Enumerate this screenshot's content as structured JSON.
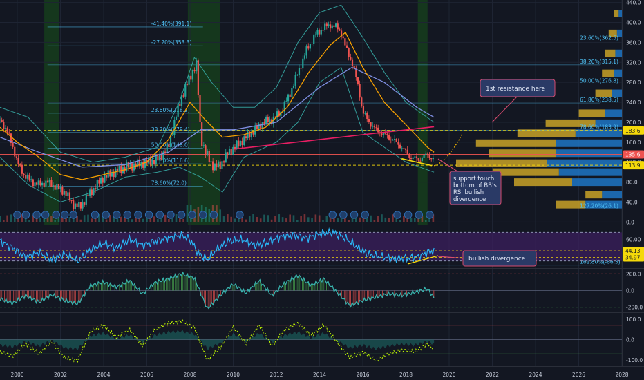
{
  "chart_data": {
    "type": "line",
    "instrument_panel": "price",
    "x_ticks": [
      "2000",
      "2002",
      "2004",
      "2006",
      "2008",
      "2010",
      "2012",
      "2014",
      "2016",
      "2018",
      "2020",
      "2022",
      "2024",
      "2026",
      "2028"
    ],
    "x_domain": [
      1999.2,
      2028.0
    ],
    "price_axis": {
      "ylim": [
        -5,
        445
      ],
      "ticks": [
        "0.0",
        "40.0",
        "80.0",
        "120.0",
        "160.0",
        "200.0",
        "240.0",
        "280.0",
        "320.0",
        "360.0",
        "400.0",
        "440.0"
      ],
      "tick_values": [
        0,
        40,
        80,
        120,
        160,
        200,
        240,
        280,
        320,
        360,
        400,
        440
      ],
      "badges": [
        {
          "label": "183.6",
          "value": 183.6,
          "color": "#f5d90a",
          "text_color": "#131722"
        },
        {
          "label": "135.6",
          "value": 135.6,
          "color": "#ef5350",
          "text_color": "#ffffff"
        },
        {
          "label": "113.9",
          "value": 113.9,
          "color": "#f5d90a",
          "text_color": "#131722"
        }
      ]
    },
    "price_series": {
      "name": "",
      "x": [
        1999.2,
        1999.5,
        1999.8,
        2000.0,
        2000.3,
        2000.7,
        2001.0,
        2001.4,
        2001.8,
        2002.2,
        2002.6,
        2002.9,
        2003.3,
        2003.7,
        2004.0,
        2004.5,
        2005.0,
        2005.5,
        2006.0,
        2006.5,
        2007.0,
        2007.3,
        2007.6,
        2007.9,
        2008.1,
        2008.3,
        2008.5,
        2008.7,
        2008.9,
        2009.1,
        2009.4,
        2009.8,
        2010.2,
        2010.6,
        2011.0,
        2011.4,
        2011.8,
        2012.2,
        2012.6,
        2013.0,
        2013.4,
        2013.8,
        2014.2,
        2014.5,
        2014.8,
        2015.0,
        2015.2,
        2015.5,
        2015.8,
        2016.0,
        2016.3,
        2016.6,
        2017.0,
        2017.4,
        2017.8,
        2018.2,
        2018.6,
        2019.0,
        2019.3
      ],
      "y": [
        205,
        185,
        150,
        120,
        95,
        80,
        75,
        80,
        70,
        60,
        35,
        30,
        55,
        75,
        90,
        100,
        110,
        115,
        120,
        125,
        150,
        205,
        250,
        280,
        300,
        315,
        170,
        140,
        125,
        110,
        115,
        140,
        155,
        170,
        185,
        200,
        205,
        220,
        255,
        300,
        345,
        375,
        390,
        395,
        390,
        380,
        350,
        320,
        270,
        220,
        200,
        185,
        175,
        165,
        150,
        130,
        125,
        135,
        125
      ]
    },
    "ma_orange": {
      "x": [
        1999.2,
        2000.0,
        2001.0,
        2002.0,
        2003.0,
        2004.0,
        2005.0,
        2006.0,
        2007.0,
        2008.0,
        2008.7,
        2009.5,
        2010.5,
        2011.5,
        2012.5,
        2013.5,
        2014.5,
        2015.2,
        2016.0,
        2017.0,
        2018.0,
        2019.0,
        2019.3
      ],
      "y": [
        190,
        160,
        130,
        95,
        85,
        95,
        105,
        120,
        165,
        240,
        205,
        170,
        175,
        190,
        230,
        300,
        355,
        380,
        310,
        240,
        195,
        150,
        140
      ]
    },
    "ma_blue": {
      "x": [
        1999.2,
        2001.0,
        2003.0,
        2005.0,
        2007.0,
        2008.5,
        2010.0,
        2012.0,
        2014.0,
        2015.5,
        2017.0,
        2018.5,
        2019.3
      ],
      "y": [
        170,
        140,
        110,
        115,
        140,
        185,
        185,
        200,
        270,
        310,
        280,
        230,
        210
      ]
    },
    "bb_upper": {
      "x": [
        1999.2,
        2000.5,
        2002.0,
        2003.5,
        2005.0,
        2006.5,
        2007.5,
        2008.2,
        2009.0,
        2010.0,
        2011.0,
        2012.0,
        2013.0,
        2014.0,
        2015.0,
        2016.0,
        2017.0,
        2018.0,
        2019.3
      ],
      "y": [
        230,
        210,
        140,
        120,
        130,
        150,
        240,
        330,
        280,
        230,
        230,
        270,
        360,
        420,
        435,
        370,
        300,
        240,
        200
      ]
    },
    "bb_lower": {
      "x": [
        1999.2,
        2000.5,
        2002.0,
        2003.5,
        2005.0,
        2006.5,
        2007.5,
        2008.5,
        2009.5,
        2010.5,
        2012.0,
        2013.0,
        2014.0,
        2015.0,
        2016.0,
        2017.0,
        2018.0,
        2019.3
      ],
      "y": [
        130,
        75,
        40,
        60,
        90,
        100,
        110,
        90,
        60,
        130,
        160,
        200,
        280,
        310,
        180,
        150,
        120,
        100
      ]
    },
    "fib_left": [
      {
        "label": "-41.40%(391.1)",
        "value": 391.1
      },
      {
        "label": "-27.20%(353.3)",
        "value": 353.3
      },
      {
        "label": "23.60%(218.2)",
        "value": 218.2
      },
      {
        "label": "38.20%(179.4)",
        "value": 179.4
      },
      {
        "label": "50.00%(148.0)",
        "value": 148.0
      },
      {
        "label": "61.80%(116.6)",
        "value": 116.6
      },
      {
        "label": "78.60%(72.0)",
        "value": 72.0
      }
    ],
    "fib_right": [
      {
        "label": "23.60%(362.5)",
        "value": 362.5
      },
      {
        "label": "38.20%(315.1)",
        "value": 315.1
      },
      {
        "label": "50.00%(276.8)",
        "value": 276.8
      },
      {
        "label": "61.80%(238.5)",
        "value": 238.5
      },
      {
        "label": "78.60%(183.9)",
        "value": 183.9
      },
      {
        "label": "127.20%(26.1)",
        "value": 26.1
      },
      {
        "label": "161.80%(-86.3)",
        "value": -86.3
      }
    ],
    "horizontal_levels": [
      {
        "value": 183.6,
        "color": "#f5d90a",
        "style": "dashed"
      },
      {
        "value": 113.9,
        "color": "#f5d90a",
        "style": "dashed"
      },
      {
        "value": 135.6,
        "color": "#ef5350",
        "style": "solid"
      }
    ],
    "trend_lines": [
      {
        "from": [
          2010.0,
          146
        ],
        "to": [
          2019.3,
          191
        ],
        "color": "#e91e63"
      },
      {
        "from": [
          2017.8,
          127
        ],
        "to": [
          2019.2,
          113
        ],
        "color": "#f5d90a"
      }
    ],
    "volume_profile": [
      {
        "price": 35,
        "up": 0.18,
        "down": 0.22
      },
      {
        "price": 55,
        "up": 0.1,
        "down": 0.12
      },
      {
        "price": 80,
        "up": 0.35,
        "down": 0.3
      },
      {
        "price": 100,
        "up": 0.4,
        "down": 0.38
      },
      {
        "price": 118,
        "up": 0.55,
        "down": 0.45
      },
      {
        "price": 138,
        "up": 0.4,
        "down": 0.4
      },
      {
        "price": 158,
        "up": 0.48,
        "down": 0.4
      },
      {
        "price": 178,
        "up": 0.35,
        "down": 0.28
      },
      {
        "price": 198,
        "up": 0.3,
        "down": 0.16
      },
      {
        "price": 218,
        "up": 0.16,
        "down": 0.1
      },
      {
        "price": 258,
        "up": 0.1,
        "down": 0.06
      },
      {
        "price": 298,
        "up": 0.07,
        "down": 0.05
      },
      {
        "price": 338,
        "up": 0.06,
        "down": 0.04
      },
      {
        "price": 378,
        "up": 0.05,
        "down": 0.03
      },
      {
        "price": 418,
        "up": 0.03,
        "down": 0.02
      }
    ],
    "annotations": [
      {
        "text": "1st resistance here"
      },
      {
        "lines": [
          "support touch",
          "bottom of BB's",
          "RSI bullish",
          "divergence"
        ]
      },
      {
        "text": "bullish divergence"
      }
    ],
    "rsi_panel": {
      "ylim": [
        20,
        80
      ],
      "ticks": [
        "60.00",
        "40.00"
      ],
      "tick_values": [
        60,
        40
      ],
      "badges": [
        {
          "label": "44.13",
          "value": 44.13,
          "color": "#f5d90a"
        },
        {
          "label": "34.97",
          "value": 34.97,
          "color": "#f5d90a"
        }
      ],
      "levels": [
        70,
        30
      ],
      "x": [
        1999.2,
        1999.8,
        2000.4,
        2001.0,
        2001.6,
        2002.2,
        2002.8,
        2003.4,
        2004.0,
        2004.6,
        2005.2,
        2005.8,
        2006.4,
        2007.0,
        2007.6,
        2008.0,
        2008.4,
        2008.8,
        2009.2,
        2009.8,
        2010.4,
        2011.0,
        2011.6,
        2012.2,
        2012.8,
        2013.4,
        2014.0,
        2014.6,
        2015.2,
        2015.8,
        2016.2,
        2016.8,
        2017.4,
        2018.0,
        2018.6,
        2019.0,
        2019.3
      ],
      "y": [
        58,
        48,
        35,
        42,
        32,
        40,
        30,
        45,
        55,
        48,
        60,
        52,
        58,
        62,
        66,
        60,
        40,
        32,
        45,
        58,
        60,
        52,
        56,
        64,
        66,
        62,
        68,
        70,
        62,
        48,
        40,
        36,
        33,
        34,
        36,
        42,
        44
      ]
    },
    "cci_panel": {
      "ylim": [
        -260,
        260
      ],
      "ticks": [
        "200.0",
        "0.0",
        "-200.0"
      ],
      "tick_values": [
        200,
        0,
        -200
      ],
      "levels": [
        200,
        -200
      ],
      "x": [
        1999.2,
        1999.8,
        2000.4,
        2001.0,
        2001.6,
        2002.2,
        2002.8,
        2003.4,
        2004.0,
        2004.6,
        2005.2,
        2005.8,
        2006.4,
        2007.0,
        2007.6,
        2008.2,
        2008.8,
        2009.4,
        2010.0,
        2010.6,
        2011.2,
        2011.8,
        2012.4,
        2013.0,
        2013.6,
        2014.2,
        2014.8,
        2015.4,
        2016.0,
        2016.6,
        2017.2,
        2017.8,
        2018.4,
        2019.0,
        2019.3
      ],
      "y": [
        -100,
        -150,
        -60,
        -140,
        -50,
        -120,
        -160,
        60,
        100,
        40,
        120,
        -40,
        100,
        140,
        200,
        150,
        -220,
        -60,
        80,
        -30,
        120,
        -60,
        90,
        180,
        60,
        140,
        -20,
        -180,
        -120,
        -80,
        -40,
        -60,
        -20,
        20,
        -90
      ]
    },
    "osc_panel": {
      "ylim": [
        -130,
        130
      ],
      "ticks": [
        "100.0",
        "0.0",
        "-100.0"
      ],
      "tick_values": [
        100,
        0,
        -100
      ],
      "levels": [
        70,
        -70
      ],
      "x": [
        1999.2,
        1999.8,
        2000.4,
        2001.0,
        2001.6,
        2002.2,
        2002.8,
        2003.4,
        2004.0,
        2004.6,
        2005.2,
        2005.8,
        2006.4,
        2007.0,
        2007.6,
        2008.2,
        2008.8,
        2009.4,
        2010.0,
        2010.6,
        2011.2,
        2011.8,
        2012.4,
        2013.0,
        2013.6,
        2014.2,
        2014.8,
        2015.4,
        2016.0,
        2016.6,
        2017.2,
        2017.8,
        2018.4,
        2019.0,
        2019.3
      ],
      "y": [
        -60,
        -80,
        -20,
        -70,
        -10,
        -90,
        -100,
        40,
        70,
        10,
        50,
        -30,
        50,
        80,
        90,
        60,
        -100,
        -40,
        60,
        -20,
        70,
        -30,
        50,
        80,
        20,
        70,
        -10,
        -90,
        -60,
        -100,
        -70,
        -50,
        -60,
        -20,
        -50
      ]
    }
  },
  "colors": {
    "background": "#131722",
    "grid": "#1e2433",
    "up": "#26a69a",
    "down": "#ef5350",
    "ma_orange": "#f59f00",
    "ma_blue": "#7e8ee0",
    "bb": "#38b2ac",
    "fib": "#4fc3f7",
    "rsi_fill": "#3b1f5e",
    "rsi_line": "#29b6f6",
    "annotation_fill": "#2a3a66",
    "annotation_border": "#d64b6f",
    "vp_up": "#c9a227",
    "vp_down": "#1f76c4",
    "green_band": "#163d1c"
  }
}
